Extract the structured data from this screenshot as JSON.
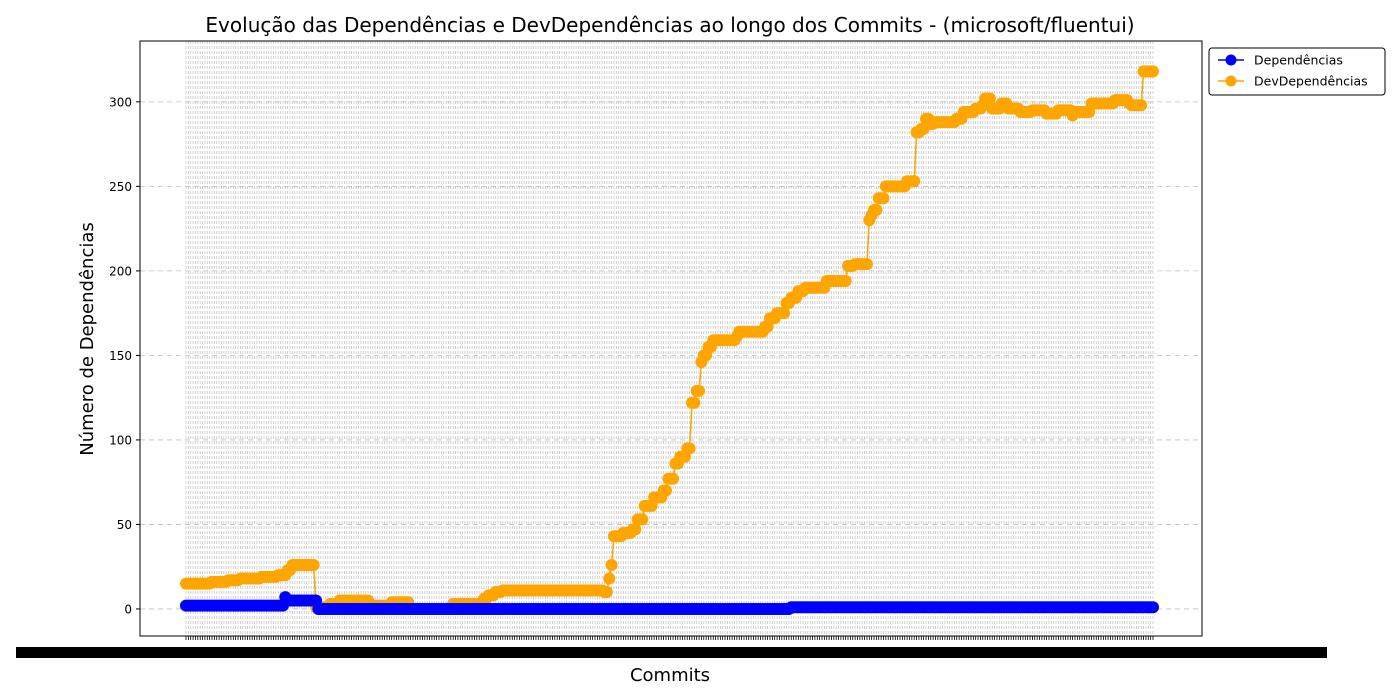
{
  "chart_data": {
    "type": "line",
    "title": "Evolução das Dependências e DevDependências ao longo dos Commits - (microsoft/fluentui)",
    "xlabel": "Commits",
    "ylabel": "Número de Dependências",
    "ylim": [
      -16,
      336
    ],
    "yticks": [
      0,
      50,
      100,
      150,
      200,
      250,
      300
    ],
    "grid": true,
    "legend_position": "outside-top-right",
    "x_count": 410,
    "series": [
      {
        "name": "Dependências",
        "color": "#0000ff",
        "segments": [
          [
            0,
            41,
            2
          ],
          [
            42,
            42,
            7
          ],
          [
            43,
            55,
            5
          ],
          [
            56,
            255,
            0
          ],
          [
            256,
            409,
            1
          ]
        ]
      },
      {
        "name": "DevDependências",
        "color": "#ffa500",
        "segments": [
          [
            0,
            10,
            15
          ],
          [
            11,
            17,
            16
          ],
          [
            18,
            22,
            17
          ],
          [
            23,
            31,
            18
          ],
          [
            32,
            38,
            19
          ],
          [
            39,
            42,
            20
          ],
          [
            43,
            44,
            23
          ],
          [
            45,
            54,
            26
          ],
          [
            55,
            60,
            1
          ],
          [
            61,
            64,
            3
          ],
          [
            65,
            77,
            5
          ],
          [
            78,
            86,
            2
          ],
          [
            87,
            94,
            4
          ],
          [
            95,
            112,
            0
          ],
          [
            113,
            125,
            3
          ],
          [
            126,
            127,
            6
          ],
          [
            128,
            130,
            8
          ],
          [
            131,
            133,
            10
          ],
          [
            134,
            176,
            11
          ],
          [
            177,
            178,
            10
          ],
          [
            179,
            179,
            18
          ],
          [
            180,
            180,
            26
          ],
          [
            181,
            184,
            43
          ],
          [
            185,
            188,
            45
          ],
          [
            189,
            190,
            47
          ],
          [
            191,
            193,
            53
          ],
          [
            194,
            197,
            61
          ],
          [
            198,
            201,
            66
          ],
          [
            202,
            203,
            70
          ],
          [
            204,
            206,
            77
          ],
          [
            207,
            208,
            86
          ],
          [
            209,
            211,
            90
          ],
          [
            212,
            213,
            95
          ],
          [
            214,
            215,
            122
          ],
          [
            216,
            217,
            129
          ],
          [
            218,
            218,
            146
          ],
          [
            219,
            220,
            150
          ],
          [
            221,
            222,
            155
          ],
          [
            223,
            232,
            159
          ],
          [
            233,
            233,
            161
          ],
          [
            234,
            244,
            164
          ],
          [
            245,
            246,
            167
          ],
          [
            247,
            249,
            172
          ],
          [
            250,
            253,
            175
          ],
          [
            254,
            255,
            181
          ],
          [
            256,
            258,
            184
          ],
          [
            259,
            261,
            188
          ],
          [
            262,
            270,
            190
          ],
          [
            271,
            279,
            194
          ],
          [
            280,
            282,
            203
          ],
          [
            283,
            288,
            204
          ],
          [
            289,
            289,
            230
          ],
          [
            290,
            290,
            233
          ],
          [
            291,
            292,
            236
          ],
          [
            293,
            295,
            243
          ],
          [
            296,
            304,
            250
          ],
          [
            305,
            306,
            253
          ],
          [
            307,
            308,
            253
          ],
          [
            309,
            310,
            282
          ],
          [
            311,
            312,
            284
          ],
          [
            313,
            314,
            290
          ],
          [
            315,
            316,
            287
          ],
          [
            317,
            325,
            288
          ],
          [
            326,
            328,
            290
          ],
          [
            329,
            333,
            294
          ],
          [
            334,
            336,
            296
          ],
          [
            337,
            337,
            298
          ],
          [
            338,
            340,
            302
          ],
          [
            341,
            344,
            296
          ],
          [
            345,
            347,
            299
          ],
          [
            348,
            352,
            296
          ],
          [
            353,
            357,
            294
          ],
          [
            358,
            363,
            295
          ],
          [
            364,
            368,
            293
          ],
          [
            369,
            374,
            295
          ],
          [
            375,
            375,
            292
          ],
          [
            376,
            382,
            294
          ],
          [
            383,
            392,
            299
          ],
          [
            393,
            398,
            301
          ],
          [
            399,
            399,
            299
          ],
          [
            400,
            404,
            298
          ],
          [
            405,
            409,
            318
          ]
        ]
      }
    ]
  }
}
